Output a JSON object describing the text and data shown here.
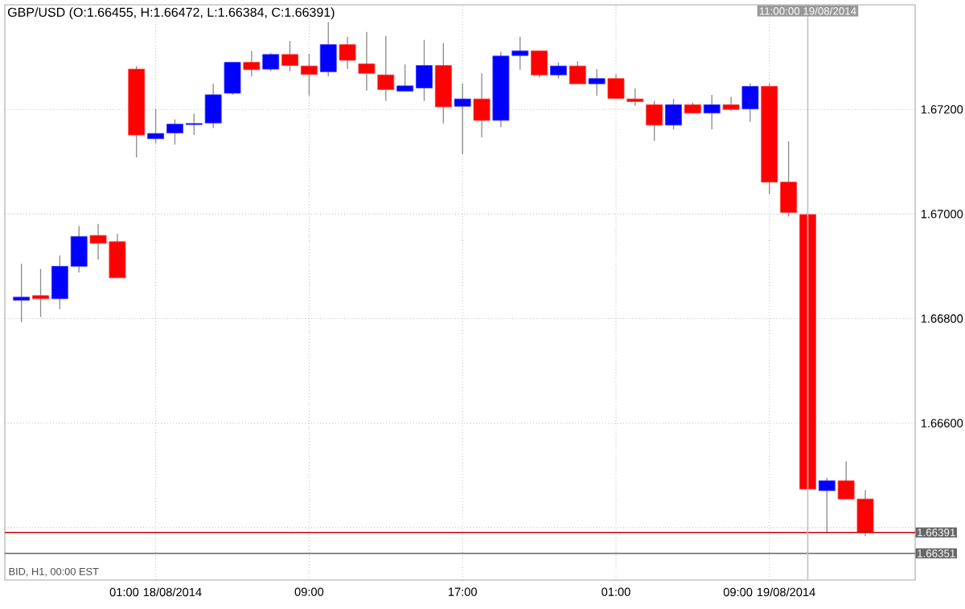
{
  "chart_data": {
    "type": "candlestick",
    "title": "GBP/USD (O:1.66455, H:1.66472, L:1.66384, C:1.66391)",
    "annotations": [
      "BID, H1, 00:00 EST"
    ],
    "x": [
      "2014-08-17T18:00",
      "2014-08-17T19:00",
      "2014-08-17T20:00",
      "2014-08-17T21:00",
      "2014-08-17T22:00",
      "2014-08-17T23:00",
      "2014-08-18T00:00",
      "2014-08-18T01:00",
      "2014-08-18T02:00",
      "2014-08-18T03:00",
      "2014-08-18T04:00",
      "2014-08-18T05:00",
      "2014-08-18T06:00",
      "2014-08-18T07:00",
      "2014-08-18T08:00",
      "2014-08-18T09:00",
      "2014-08-18T10:00",
      "2014-08-18T11:00",
      "2014-08-18T12:00",
      "2014-08-18T13:00",
      "2014-08-18T14:00",
      "2014-08-18T15:00",
      "2014-08-18T16:00",
      "2014-08-18T17:00",
      "2014-08-18T18:00",
      "2014-08-18T19:00",
      "2014-08-18T20:00",
      "2014-08-18T21:00",
      "2014-08-18T22:00",
      "2014-08-18T23:00",
      "2014-08-19T00:00",
      "2014-08-19T01:00",
      "2014-08-19T02:00",
      "2014-08-19T03:00",
      "2014-08-19T04:00",
      "2014-08-19T05:00",
      "2014-08-19T06:00",
      "2014-08-19T07:00",
      "2014-08-19T08:00",
      "2014-08-19T09:00",
      "2014-08-19T10:00",
      "2014-08-19T11:00",
      "2014-08-19T12:00",
      "2014-08-19T13:00",
      "2014-08-19T14:00"
    ],
    "ohlc": [
      [
        1.66835,
        1.66905,
        1.66793,
        1.66841
      ],
      [
        1.66844,
        1.66895,
        1.66803,
        1.66838
      ],
      [
        1.66838,
        1.66921,
        1.66818,
        1.669
      ],
      [
        1.669,
        1.66977,
        1.66888,
        1.66957
      ],
      [
        1.66959,
        1.66981,
        1.66913,
        1.66944
      ],
      [
        1.66947,
        1.66962,
        1.66878,
        1.66878
      ],
      [
        1.67277,
        1.67283,
        1.67108,
        1.67151
      ],
      [
        1.67144,
        1.67201,
        1.67135,
        1.67154
      ],
      [
        1.67155,
        1.67181,
        1.67133,
        1.67172
      ],
      [
        1.67171,
        1.67192,
        1.67151,
        1.67173
      ],
      [
        1.67174,
        1.67249,
        1.67164,
        1.67228
      ],
      [
        1.67231,
        1.6729,
        1.67228,
        1.6729
      ],
      [
        1.6729,
        1.67312,
        1.67263,
        1.67276
      ],
      [
        1.67277,
        1.67308,
        1.67273,
        1.67305
      ],
      [
        1.67305,
        1.67331,
        1.67273,
        1.67284
      ],
      [
        1.67283,
        1.67306,
        1.67226,
        1.67267
      ],
      [
        1.67272,
        1.67367,
        1.67263,
        1.67324
      ],
      [
        1.67324,
        1.67339,
        1.67277,
        1.67294
      ],
      [
        1.67287,
        1.67348,
        1.67236,
        1.67269
      ],
      [
        1.67266,
        1.67341,
        1.67216,
        1.67238
      ],
      [
        1.67235,
        1.67286,
        1.67235,
        1.67245
      ],
      [
        1.67241,
        1.67333,
        1.67216,
        1.67284
      ],
      [
        1.67284,
        1.67327,
        1.67173,
        1.67205
      ],
      [
        1.67206,
        1.6725,
        1.67114,
        1.6722
      ],
      [
        1.6722,
        1.67269,
        1.67147,
        1.67179
      ],
      [
        1.67179,
        1.6731,
        1.67166,
        1.67302
      ],
      [
        1.67303,
        1.67339,
        1.67276,
        1.67312
      ],
      [
        1.67312,
        1.67312,
        1.67261,
        1.67266
      ],
      [
        1.67266,
        1.6729,
        1.67259,
        1.67283
      ],
      [
        1.67283,
        1.67292,
        1.67249,
        1.67249
      ],
      [
        1.67249,
        1.67277,
        1.67226,
        1.67259
      ],
      [
        1.67259,
        1.67267,
        1.67221,
        1.67221
      ],
      [
        1.6722,
        1.6724,
        1.67207,
        1.67215
      ],
      [
        1.67209,
        1.67216,
        1.6714,
        1.6717
      ],
      [
        1.6717,
        1.6722,
        1.67162,
        1.67209
      ],
      [
        1.67209,
        1.67213,
        1.67191,
        1.67193
      ],
      [
        1.67193,
        1.67228,
        1.67162,
        1.67209
      ],
      [
        1.67209,
        1.67224,
        1.67197,
        1.672
      ],
      [
        1.67201,
        1.6725,
        1.67176,
        1.67244
      ],
      [
        1.67244,
        1.6725,
        1.67038,
        1.67061
      ],
      [
        1.67061,
        1.67139,
        1.66995,
        1.67003
      ],
      [
        1.66999,
        1.67003,
        1.66474,
        1.66474
      ],
      [
        1.66471,
        1.66496,
        1.66391,
        1.6649
      ],
      [
        1.6649,
        1.66527,
        1.66455,
        1.66455
      ],
      [
        1.66455,
        1.66472,
        1.66384,
        1.66391
      ]
    ],
    "colors": [
      "#0000ff",
      "#ff0000",
      "#0000ff",
      "#0000ff",
      "#ff0000",
      "#ff0000",
      "#ff0000",
      "#0000ff",
      "#0000ff",
      "#0000ff",
      "#0000ff",
      "#0000ff",
      "#ff0000",
      "#0000ff",
      "#ff0000",
      "#ff0000",
      "#0000ff",
      "#ff0000",
      "#ff0000",
      "#ff0000",
      "#0000ff",
      "#0000ff",
      "#ff0000",
      "#0000ff",
      "#ff0000",
      "#0000ff",
      "#0000ff",
      "#ff0000",
      "#0000ff",
      "#ff0000",
      "#0000ff",
      "#ff0000",
      "#ff0000",
      "#ff0000",
      "#0000ff",
      "#ff0000",
      "#0000ff",
      "#ff0000",
      "#0000ff",
      "#ff0000",
      "#ff0000",
      "#ff0000",
      "#0000ff",
      "#ff0000",
      "#ff0000"
    ],
    "xlim": [
      "2014-08-17T17:08",
      "2014-08-19T16:36"
    ],
    "xticks": [
      {
        "value": "2014-08-18T01:00",
        "label": "01:00 18/08/2014"
      },
      {
        "value": "2014-08-18T09:00",
        "label": "09:00"
      },
      {
        "value": "2014-08-18T17:00",
        "label": "17:00"
      },
      {
        "value": "2014-08-19T01:00",
        "label": "01:00"
      },
      {
        "value": "2014-08-19T09:00",
        "label": "09:00 19/08/2014"
      }
    ],
    "ylim": [
      1.663,
      1.674
    ],
    "yticks": [
      {
        "value": 1.664,
        "label": null
      },
      {
        "value": 1.666,
        "label": "1.66600"
      },
      {
        "value": 1.668,
        "label": "1.66800"
      },
      {
        "value": 1.67,
        "label": "1.67000"
      },
      {
        "value": 1.672,
        "label": "1.67200"
      }
    ],
    "grid": true,
    "ref_lines": [
      {
        "axis": "y",
        "value": 1.66391,
        "label": "1.66391",
        "color": "#cc0000"
      },
      {
        "axis": "y",
        "value": 1.66351,
        "label": "1.66351",
        "color": "#666666"
      },
      {
        "axis": "x",
        "value": "2014-08-19T11:00",
        "label": "11:00:00 19/08/2014",
        "color": "#c0c0c0"
      }
    ]
  }
}
